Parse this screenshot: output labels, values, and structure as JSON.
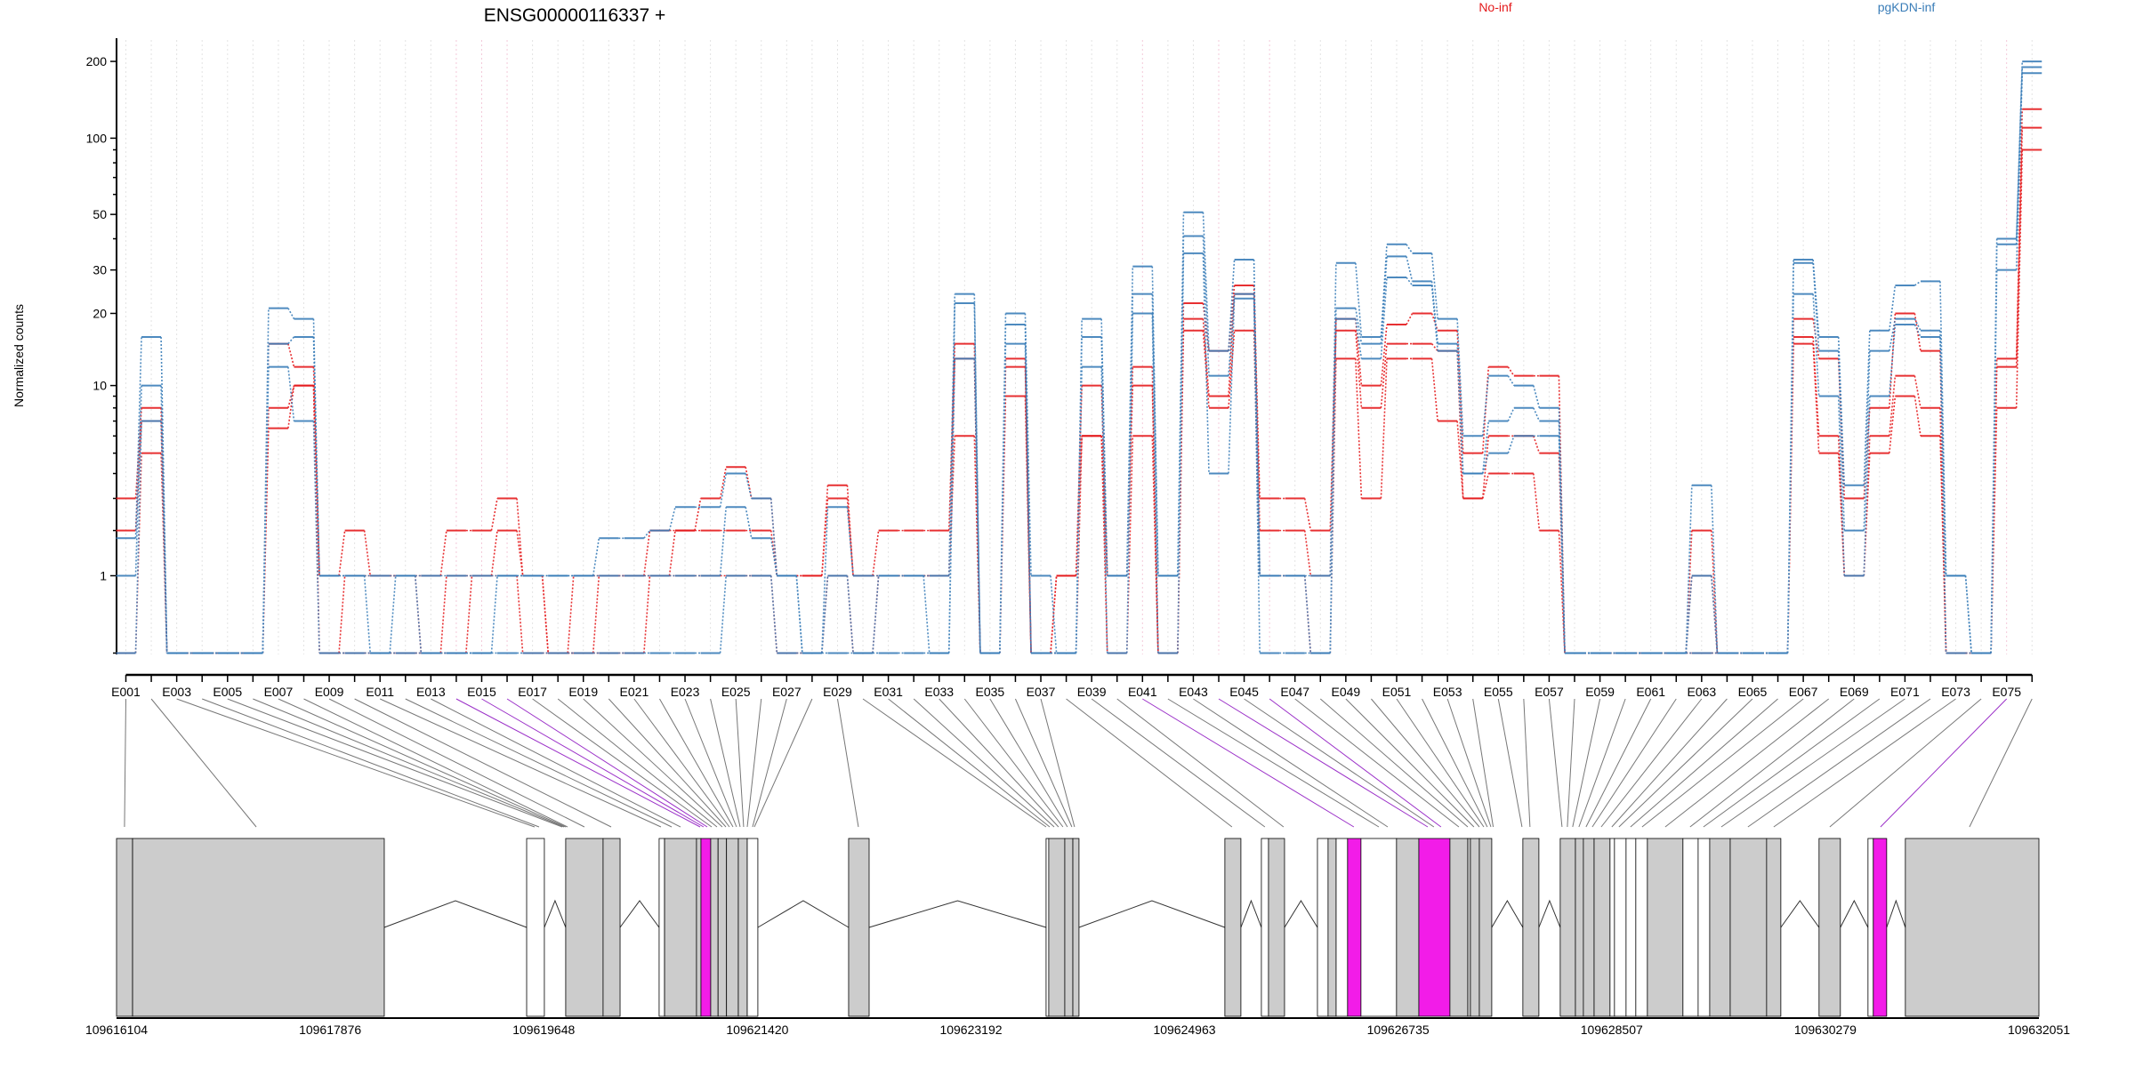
{
  "chart_data": {
    "type": "line",
    "title": "ENSG00000116337 +",
    "ylabel": "Normalized counts",
    "xlabel": "",
    "y_transform": "log10(count+1)",
    "y_ticks": [
      1,
      10,
      20,
      30,
      50,
      100,
      200
    ],
    "y_minor_ticks": [
      0,
      2,
      3,
      4,
      5,
      6,
      7,
      8,
      9,
      40,
      60,
      70,
      80,
      90
    ],
    "ylim": [
      0,
      230
    ],
    "grid": "vertical dotted at each exon",
    "legend": [
      {
        "name": "No-inf",
        "color": "#E41A1C"
      },
      {
        "name": "pgKDN-inf",
        "color": "#3A7DB8"
      }
    ],
    "exon_count": 76,
    "exon_labels_shown": [
      "E001",
      "E003",
      "E005",
      "E007",
      "E009",
      "E011",
      "E013",
      "E015",
      "E017",
      "E019",
      "E021",
      "E023",
      "E025",
      "E027",
      "E029",
      "E031",
      "E033",
      "E035",
      "E037",
      "E039",
      "E041",
      "E043",
      "E045",
      "E047",
      "E049",
      "E051",
      "E053",
      "E055",
      "E057",
      "E059",
      "E061",
      "E063",
      "E065",
      "E067",
      "E069",
      "E071",
      "E073",
      "E075"
    ],
    "significant_exons": [
      14,
      15,
      16,
      41,
      44,
      46,
      75
    ],
    "series": [
      {
        "group": "No-inf",
        "sample": 1,
        "values": [
          3,
          8,
          0,
          0,
          0,
          0,
          15,
          12,
          1,
          2,
          1,
          1,
          1,
          2,
          2,
          3,
          1,
          0,
          1,
          1,
          1,
          2,
          2,
          3,
          4.3,
          3,
          1,
          1,
          3.5,
          1,
          2,
          2,
          2,
          15,
          0,
          13,
          0,
          1,
          10,
          1,
          12,
          0,
          22,
          14,
          26,
          3,
          3,
          2,
          19,
          10,
          18,
          20,
          17,
          5,
          12,
          11,
          11,
          0,
          0,
          0,
          0,
          0,
          2,
          0,
          0,
          0,
          19,
          13,
          3,
          8,
          20,
          14,
          0,
          0,
          13,
          130
        ]
      },
      {
        "group": "No-inf",
        "sample": 2,
        "values": [
          2,
          7,
          0,
          0,
          0,
          0,
          8,
          10,
          0,
          1,
          1,
          1,
          0,
          1,
          1,
          2,
          1,
          0,
          0,
          1,
          1,
          1,
          2,
          2,
          2,
          2,
          1,
          1,
          3,
          1,
          1,
          1,
          1,
          13,
          0,
          12,
          0,
          1,
          6,
          1,
          10,
          0,
          19,
          9,
          24,
          2,
          2,
          1,
          17,
          8,
          15,
          15,
          14,
          3,
          6,
          6,
          5,
          0,
          0,
          0,
          0,
          0,
          1,
          0,
          0,
          0,
          16,
          6,
          1,
          6,
          11,
          8,
          0,
          0,
          12,
          110
        ]
      },
      {
        "group": "No-inf",
        "sample": 3,
        "values": [
          0,
          5,
          0,
          0,
          0,
          0,
          6.5,
          10,
          0,
          0,
          0,
          0,
          0,
          0,
          1,
          1,
          0,
          0,
          0,
          0,
          0,
          1,
          1,
          1,
          1,
          1,
          0,
          0,
          1,
          0,
          1,
          1,
          1,
          6,
          0,
          9,
          0,
          0,
          6,
          0,
          6,
          0,
          17,
          8,
          17,
          1,
          1,
          0,
          13,
          3,
          13,
          13,
          7,
          3,
          4,
          4,
          2,
          0,
          0,
          0,
          0,
          0,
          0,
          0,
          0,
          0,
          15,
          5,
          1,
          5,
          9,
          6,
          0,
          0,
          8,
          90
        ]
      },
      {
        "group": "pgKDN-inf",
        "sample": 1,
        "values": [
          1.8,
          16,
          0,
          0,
          0,
          0,
          21,
          19,
          1,
          1,
          1,
          1,
          1,
          1,
          1,
          1,
          1,
          1,
          1,
          1.8,
          1.8,
          2,
          2.7,
          2.7,
          4,
          3,
          1,
          0,
          2.7,
          1,
          1,
          1,
          1,
          24,
          0,
          20,
          1,
          0,
          19,
          1,
          31,
          1,
          51,
          14,
          33,
          1,
          1,
          1,
          32,
          16,
          38,
          35,
          19,
          6,
          11,
          10,
          8,
          0,
          0,
          0,
          0,
          0,
          3.5,
          0,
          0,
          0,
          33,
          16,
          3.5,
          17,
          26,
          27,
          1,
          0,
          40,
          200
        ]
      },
      {
        "group": "pgKDN-inf",
        "sample": 2,
        "values": [
          1,
          10,
          0,
          0,
          0,
          0,
          15,
          16,
          1,
          1,
          0,
          1,
          0,
          0,
          0,
          1,
          1,
          1,
          1,
          1,
          1,
          1,
          1,
          1,
          2.7,
          1.8,
          1,
          0,
          1,
          0,
          1,
          1,
          0,
          22,
          0,
          18,
          0,
          0,
          16,
          1,
          24,
          1,
          41,
          11,
          24,
          1,
          1,
          0,
          21,
          15,
          34,
          27,
          15,
          4,
          7,
          8,
          7,
          0,
          0,
          0,
          0,
          0,
          1,
          0,
          0,
          0,
          32,
          14,
          2,
          14,
          19,
          17,
          1,
          0,
          38,
          190
        ]
      },
      {
        "group": "pgKDN-inf",
        "sample": 3,
        "values": [
          0,
          7,
          0,
          0,
          0,
          0,
          12,
          7,
          0,
          0,
          0,
          0,
          0,
          0,
          0,
          0,
          0,
          0,
          0,
          0,
          0,
          0,
          0,
          0,
          1,
          1,
          0,
          0,
          0,
          0,
          0,
          0,
          0,
          13,
          0,
          15,
          0,
          0,
          12,
          0,
          20,
          0,
          35,
          4,
          23,
          0,
          0,
          0,
          19,
          13,
          28,
          26,
          14,
          4,
          5,
          6,
          6,
          0,
          0,
          0,
          0,
          0,
          0,
          0,
          0,
          0,
          24,
          9,
          1,
          9,
          18,
          16,
          0,
          0,
          30,
          180
        ]
      }
    ],
    "genomic_axis": {
      "start": 109616104,
      "end": 109632051,
      "tick_labels": [
        "109616104",
        "109617876",
        "109619648",
        "109621420",
        "109623192",
        "109624963",
        "109626735",
        "109628507",
        "109630279",
        "109632051"
      ]
    },
    "gene_model": {
      "units": "bp offset from 109616104",
      "exon_bins": [
        [
          0,
          133,
          "gray"
        ],
        [
          133,
          2221,
          "gray"
        ],
        [
          3402,
          3549,
          "white"
        ],
        [
          3726,
          4036,
          "gray"
        ],
        [
          4036,
          4177,
          "gray"
        ],
        [
          4501,
          4546,
          "white"
        ],
        [
          4546,
          4811,
          "gray"
        ],
        [
          4811,
          4848,
          "gray"
        ],
        [
          4848,
          4929,
          "sig"
        ],
        [
          4929,
          4990,
          "gray"
        ],
        [
          4990,
          5060,
          "gray"
        ],
        [
          5060,
          5158,
          "gray"
        ],
        [
          5158,
          5232,
          "gray"
        ],
        [
          5232,
          5320,
          "white"
        ],
        [
          6073,
          6243,
          "gray"
        ],
        [
          7711,
          7733,
          "white"
        ],
        [
          7733,
          7866,
          "gray"
        ],
        [
          7866,
          7933,
          "gray"
        ],
        [
          7933,
          7984,
          "gray"
        ],
        [
          9194,
          9327,
          "gray"
        ],
        [
          9497,
          9556,
          "white"
        ],
        [
          9556,
          9689,
          "gray"
        ],
        [
          9962,
          10050,
          "white"
        ],
        [
          10050,
          10117,
          "gray"
        ],
        [
          10117,
          10212,
          "white"
        ],
        [
          10212,
          10323,
          "sig"
        ],
        [
          10323,
          10618,
          "white"
        ],
        [
          10618,
          10803,
          "gray"
        ],
        [
          10803,
          11061,
          "sig"
        ],
        [
          11061,
          11209,
          "gray"
        ],
        [
          11209,
          11231,
          "gray"
        ],
        [
          11231,
          11305,
          "gray"
        ],
        [
          11305,
          11408,
          "gray"
        ],
        [
          11666,
          11799,
          "gray"
        ],
        [
          11976,
          12102,
          "gray"
        ],
        [
          12102,
          12168,
          "gray"
        ],
        [
          12168,
          12257,
          "gray"
        ],
        [
          12257,
          12389,
          "gray"
        ],
        [
          12389,
          12426,
          "white"
        ],
        [
          12426,
          12522,
          "white"
        ],
        [
          12522,
          12603,
          "white"
        ],
        [
          12603,
          12699,
          "white"
        ],
        [
          12699,
          12994,
          "gray"
        ],
        [
          12994,
          13120,
          "white"
        ],
        [
          13120,
          13216,
          "white"
        ],
        [
          13216,
          13386,
          "gray"
        ],
        [
          13386,
          13688,
          "gray"
        ],
        [
          13688,
          13806,
          "gray"
        ],
        [
          14123,
          14300,
          "gray"
        ],
        [
          14529,
          14573,
          "white"
        ],
        [
          14573,
          14684,
          "sig"
        ],
        [
          14839,
          15947,
          "gray"
        ]
      ],
      "introns": [
        [
          2221,
          3402
        ],
        [
          3549,
          3726
        ],
        [
          4177,
          4501
        ],
        [
          5320,
          6073
        ],
        [
          6243,
          7711
        ],
        [
          7984,
          9194
        ],
        [
          9327,
          9497
        ],
        [
          9689,
          9962
        ],
        [
          11408,
          11666
        ],
        [
          11799,
          11976
        ],
        [
          13806,
          14123
        ],
        [
          14300,
          14529
        ],
        [
          14684,
          14839
        ]
      ],
      "exon_positions": [
        66,
        1159,
        3468,
        3505,
        3697,
        3712,
        3726,
        3741,
        3881,
        4103,
        4516,
        4605,
        4678,
        4841,
        4870,
        4900,
        4937,
        4981,
        5025,
        5055,
        5084,
        5114,
        5143,
        5173,
        5202,
        5232,
        5276,
        5291,
        6154,
        7711,
        7741,
        7778,
        7814,
        7851,
        7888,
        7925,
        7947,
        9253,
        9526,
        9681,
        10264,
        10471,
        10545,
        10877,
        10928,
        10987,
        11135,
        11209,
        11260,
        11305,
        11342,
        11371,
        11401,
        11420,
        11659,
        11725,
        11991,
        12035,
        12079,
        12131,
        12190,
        12242,
        12316,
        12404,
        12463,
        12559,
        12655,
        12847,
        13053,
        13164,
        13312,
        13533,
        13747,
        14212,
        14633,
        15371
      ],
      "colors": {
        "gray": "#CCCCCC",
        "white": "#FFFFFF",
        "sig": "#F21CE8",
        "sig_line": "#9B30C8",
        "line": "#777777"
      }
    }
  }
}
